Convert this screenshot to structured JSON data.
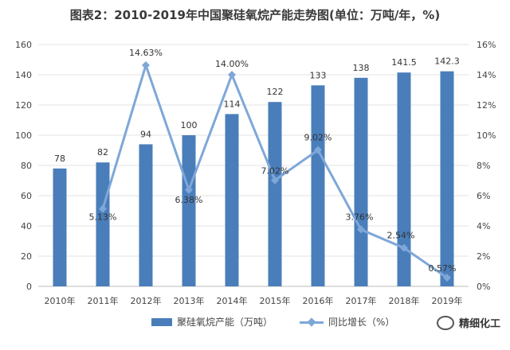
{
  "title": "图表2：2010-2019年中国聚硅氧烷产能走势图(单位：万吨/年，%)",
  "watermark": "精细化工",
  "colors": {
    "bar": "#4a7ebb",
    "line": "#7ea7d8",
    "axis_text": "#444444",
    "grid": "#e3e3e3"
  },
  "chart_data": {
    "type": "bar",
    "categories": [
      "2010年",
      "2011年",
      "2012年",
      "2013年",
      "2014年",
      "2015年",
      "2016年",
      "2017年",
      "2018年",
      "2019年"
    ],
    "series": [
      {
        "name": "聚硅氧烷产能（万吨）",
        "type": "bar",
        "axis": "left",
        "values": [
          78,
          82,
          94,
          100,
          114,
          122,
          133,
          138,
          141.5,
          142.3
        ],
        "labels": [
          "78",
          "82",
          "94",
          "100",
          "114",
          "122",
          "133",
          "138",
          "141.5",
          "142.3"
        ]
      },
      {
        "name": "同比增长（%）",
        "type": "line",
        "axis": "right",
        "values": [
          null,
          5.13,
          14.63,
          6.38,
          14.0,
          7.02,
          9.02,
          3.76,
          2.54,
          0.57
        ],
        "labels": [
          "",
          "5.13%",
          "14.63%",
          "6.38%",
          "14.00%",
          "7.02%",
          "9.02%",
          "3.76%",
          "2.54%",
          "0.57%"
        ]
      }
    ],
    "y_left": {
      "min": 0,
      "max": 160,
      "ticks": [
        "0",
        "20",
        "40",
        "60",
        "80",
        "100",
        "120",
        "140",
        "160"
      ]
    },
    "y_right": {
      "min": 0,
      "max": 16,
      "ticks": [
        "0%",
        "2%",
        "4%",
        "6%",
        "8%",
        "10%",
        "12%",
        "14%",
        "16%"
      ]
    },
    "grid": true,
    "legend_position": "bottom"
  }
}
